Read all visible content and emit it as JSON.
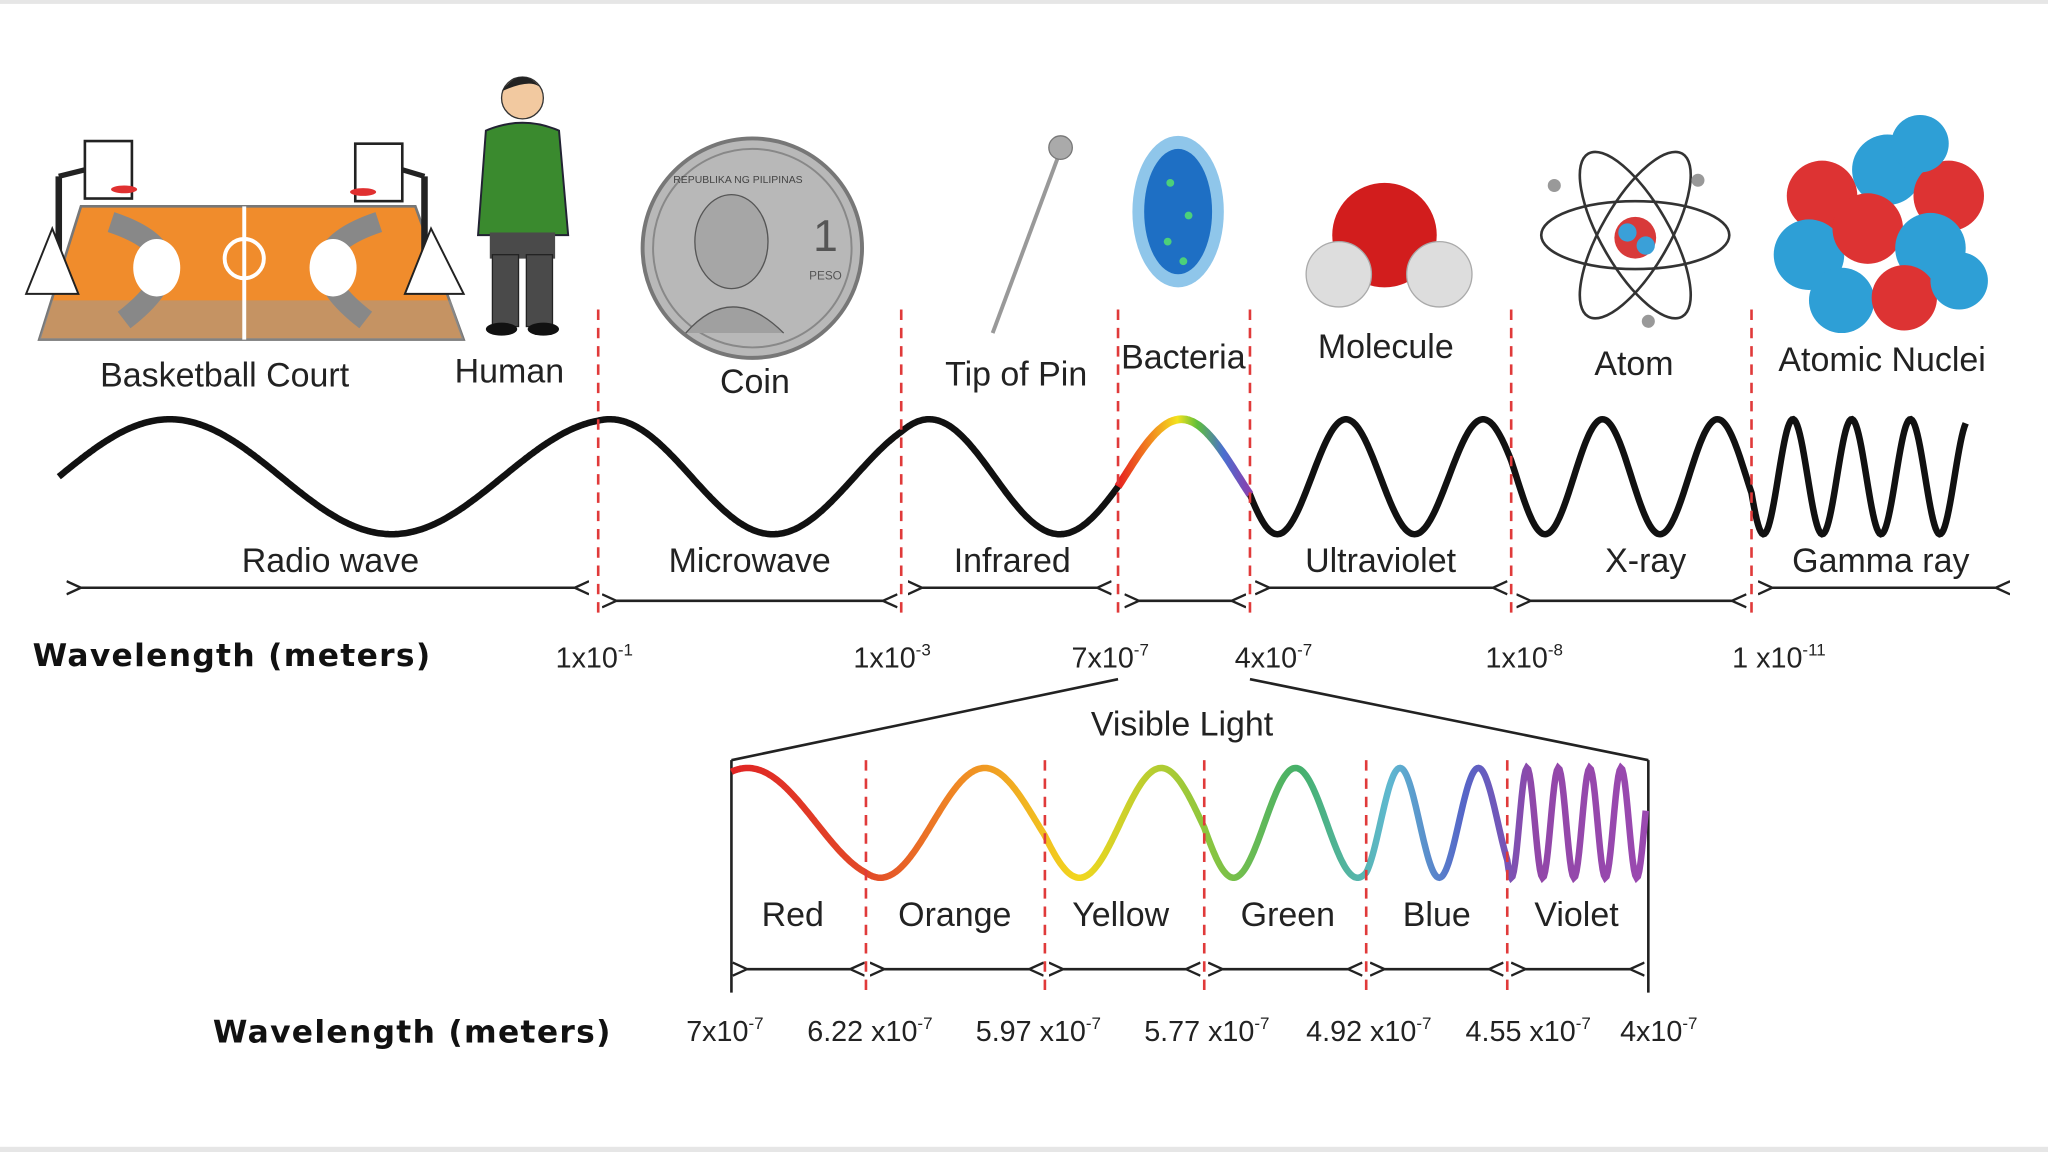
{
  "objects": [
    "Basketball Court",
    "Human",
    "Coin",
    "Tip of Pin",
    "Bacteria",
    "Molecule",
    "Atom",
    "Atomic Nuclei"
  ],
  "coin": {
    "text": "REPUBLIKA NG PILIPINAS",
    "value": "1",
    "unit": "PESO"
  },
  "bands": [
    "Radio wave",
    "Microwave",
    "Infrared",
    "Ultraviolet",
    "X-ray",
    "Gamma ray"
  ],
  "axis_label": "Wavelength (meters)",
  "boundaries": [
    {
      "base": "1x10",
      "exp": "-1"
    },
    {
      "base": "1x10",
      "exp": "-3"
    },
    {
      "base": "7x10",
      "exp": "-7"
    },
    {
      "base": "4x10",
      "exp": "-7"
    },
    {
      "base": "1x10",
      "exp": "-8"
    },
    {
      "base": "1 x10",
      "exp": "-11"
    }
  ],
  "visible": {
    "title": "Visible Light",
    "colors": [
      "Red",
      "Orange",
      "Yellow",
      "Green",
      "Blue",
      "Violet"
    ],
    "axis_label": "Wavelength (meters)",
    "boundaries": [
      {
        "base": "7x10",
        "exp": "-7"
      },
      {
        "base": "6.22 x10",
        "exp": "-7"
      },
      {
        "base": "5.97 x10",
        "exp": "-7"
      },
      {
        "base": "5.77 x10",
        "exp": "-7"
      },
      {
        "base": "4.92 x10",
        "exp": "-7"
      },
      {
        "base": "4.55 x10",
        "exp": "-7"
      },
      {
        "base": "4x10",
        "exp": "-7"
      }
    ]
  }
}
